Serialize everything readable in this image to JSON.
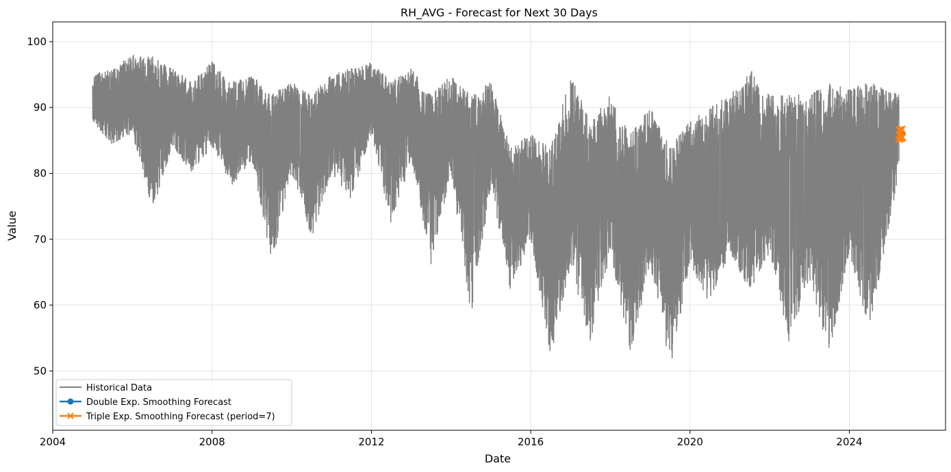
{
  "chart_data": {
    "type": "line",
    "title": "RH_AVG - Forecast for Next 30 Days",
    "xlabel": "Date",
    "ylabel": "Value",
    "xlim": [
      "2004-01-01",
      "2026-06-01"
    ],
    "ylim": [
      41,
      103
    ],
    "x_ticks": [
      "2004",
      "2008",
      "2012",
      "2016",
      "2020",
      "2024"
    ],
    "y_ticks": [
      50,
      60,
      70,
      80,
      90,
      100
    ],
    "grid": true,
    "legend_position": "lower-left",
    "series": [
      {
        "name": "Historical Data",
        "color": "#808080",
        "marker": "none",
        "x": [
          "2005-01-01",
          "2005-07-01",
          "2006-01-01",
          "2006-07-01",
          "2007-01-01",
          "2007-07-01",
          "2008-01-01",
          "2008-07-01",
          "2009-01-01",
          "2009-07-01",
          "2010-01-01",
          "2010-07-01",
          "2011-01-01",
          "2011-07-01",
          "2012-01-01",
          "2012-07-01",
          "2013-01-01",
          "2013-07-01",
          "2014-01-01",
          "2014-07-01",
          "2015-01-01",
          "2015-07-01",
          "2016-01-01",
          "2016-07-01",
          "2017-01-01",
          "2017-07-01",
          "2018-01-01",
          "2018-07-01",
          "2019-01-01",
          "2019-07-01",
          "2020-01-01",
          "2020-07-01",
          "2021-01-01",
          "2021-07-01",
          "2022-01-01",
          "2022-07-01",
          "2023-01-01",
          "2023-07-01",
          "2024-01-01",
          "2024-07-01",
          "2025-03-31"
        ],
        "low": [
          88,
          84,
          86,
          74,
          84,
          80,
          84,
          78,
          82,
          66,
          80,
          70,
          80,
          76,
          86,
          72,
          82,
          66,
          80,
          58,
          78,
          62,
          70,
          52,
          66,
          54,
          68,
          52,
          66,
          50,
          66,
          60,
          68,
          62,
          68,
          54,
          64,
          52,
          68,
          56,
          80
        ],
        "high": [
          95,
          96,
          98,
          98,
          96,
          94,
          97,
          94,
          95,
          92,
          94,
          92,
          95,
          96,
          97,
          94,
          96,
          92,
          95,
          92,
          94,
          84,
          86,
          84,
          95,
          88,
          92,
          86,
          90,
          84,
          88,
          90,
          92,
          96,
          92,
          92,
          92,
          94,
          93,
          94,
          92
        ],
        "value": [
          90,
          90,
          91,
          88,
          90,
          87,
          89,
          86,
          88,
          84,
          87,
          83,
          87,
          86,
          91,
          85,
          88,
          82,
          86,
          78,
          85,
          75,
          77,
          70,
          78,
          72,
          78,
          70,
          76,
          70,
          76,
          75,
          78,
          77,
          78,
          74,
          76,
          73,
          78,
          74,
          86
        ]
      },
      {
        "name": "Double Exp. Smoothing Forecast",
        "color": "#1f77b4",
        "marker": "o",
        "x": [
          "2025-04-01",
          "2025-04-15",
          "2025-04-30"
        ],
        "values": [
          86.0,
          86.0,
          86.0
        ]
      },
      {
        "name": "Triple Exp. Smoothing Forecast (period=7)",
        "color": "#ff7f0e",
        "marker": "x",
        "x": [
          "2025-04-01",
          "2025-04-05",
          "2025-04-10",
          "2025-04-15",
          "2025-04-20",
          "2025-04-25",
          "2025-04-30"
        ],
        "values": [
          85.2,
          86.6,
          85.6,
          86.4,
          85.3,
          86.7,
          85.5
        ]
      }
    ]
  }
}
